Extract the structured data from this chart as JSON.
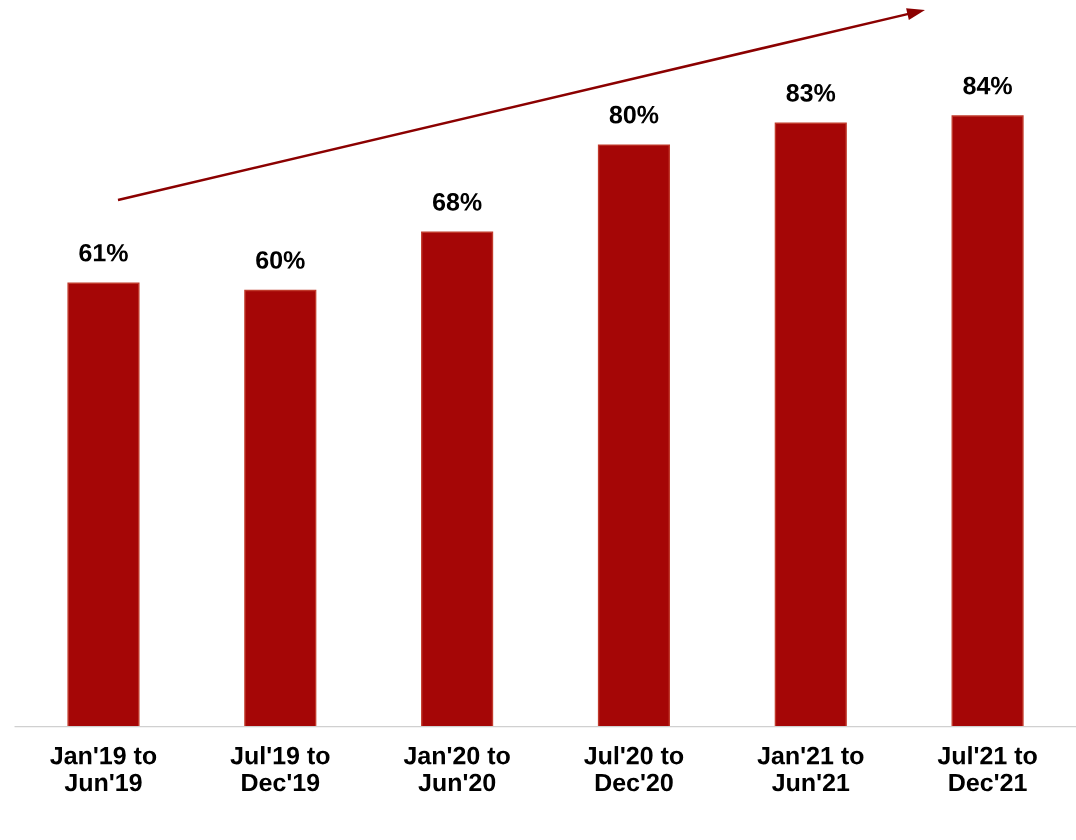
{
  "chart_data": {
    "type": "bar",
    "categories": [
      "Jan'19 to\nJun'19",
      "Jul'19 to\nDec'19",
      "Jan'20 to\nJun'20",
      "Jul'20 to\nDec'20",
      "Jan'21 to\nJun'21",
      "Jul'21 to\nDec'21"
    ],
    "values": [
      61,
      60,
      68,
      80,
      83,
      84
    ],
    "value_labels": [
      "61%",
      "60%",
      "68%",
      "80%",
      "83%",
      "84%"
    ],
    "color": "#a50606",
    "tick_labels": "x",
    "grid": false,
    "legend": false
  }
}
